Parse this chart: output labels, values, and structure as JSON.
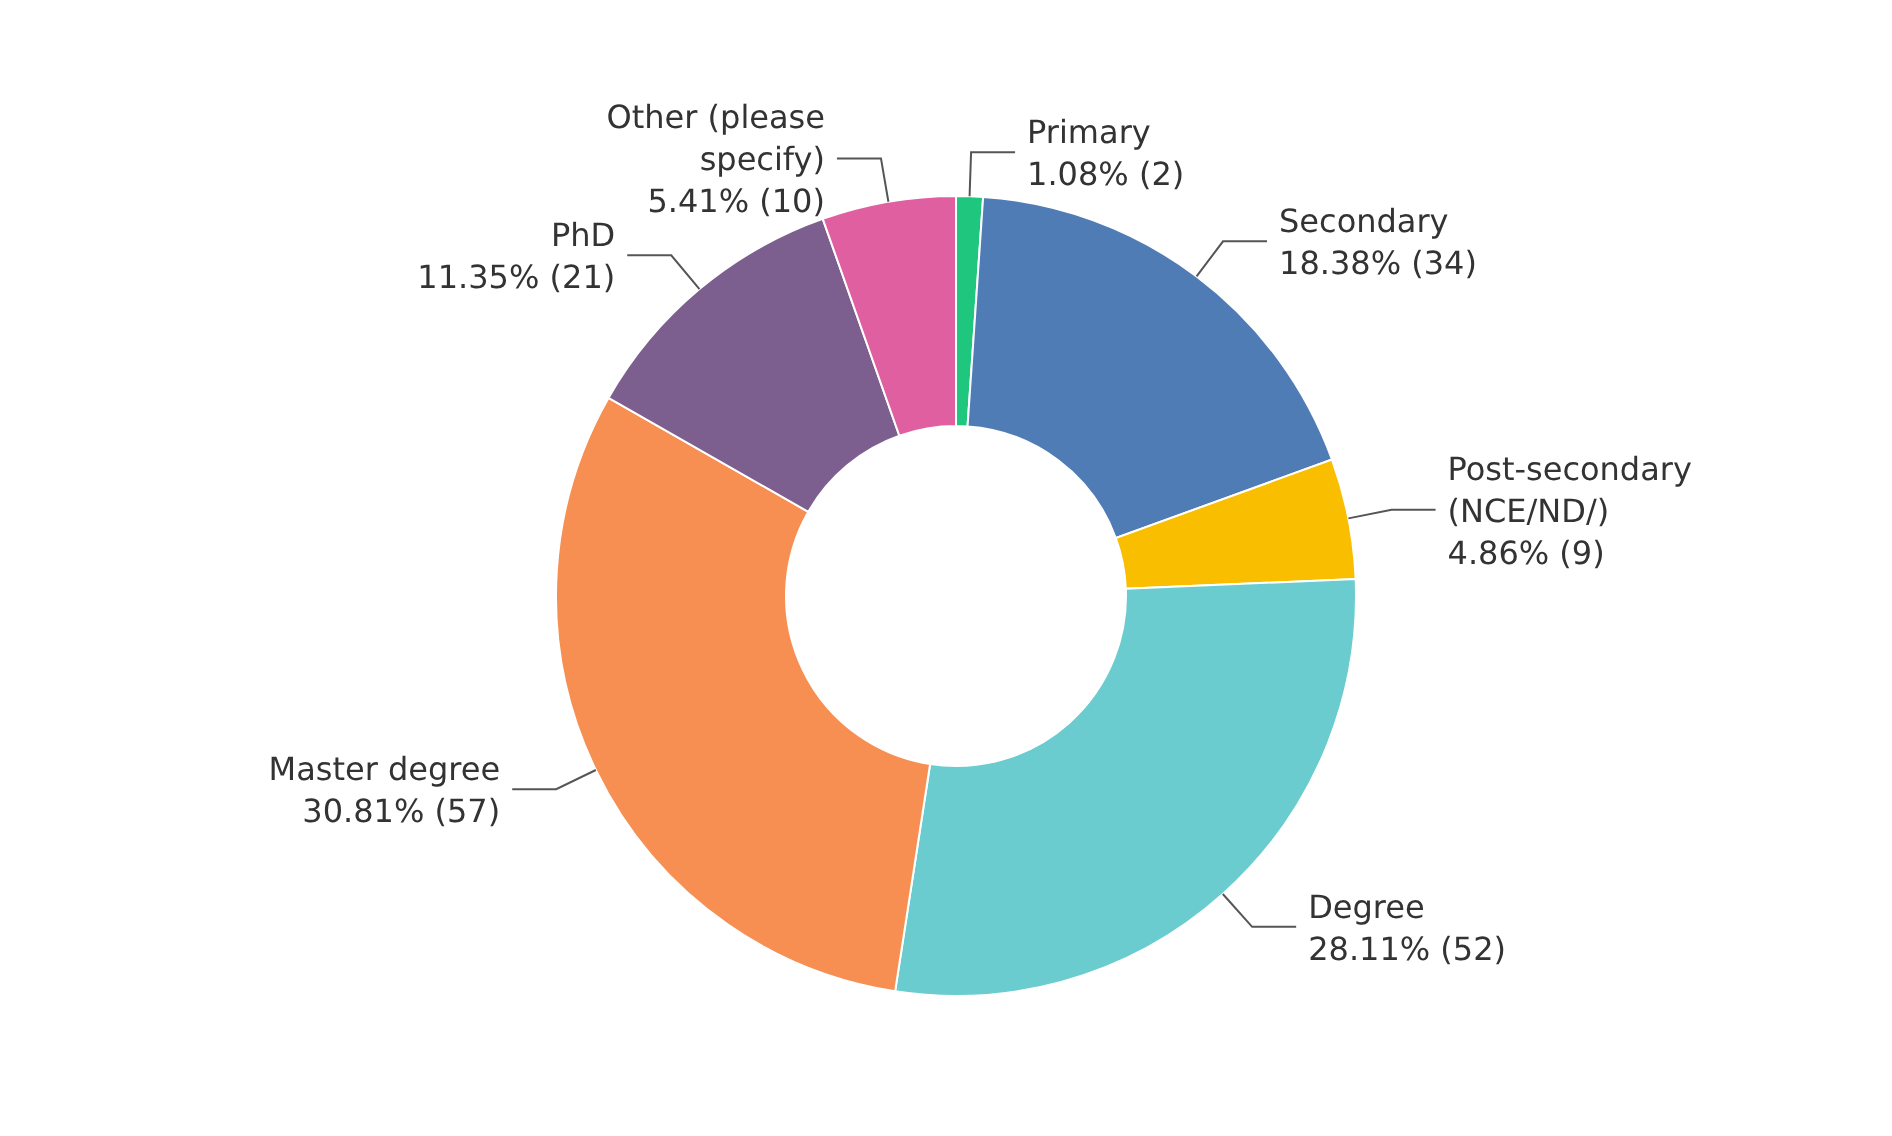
{
  "chart_data": {
    "type": "donut",
    "categories": [
      "Primary",
      "Secondary",
      "Post-secondary (NCE/ND/)",
      "Degree",
      "Master degree",
      "PhD",
      "Other (please specify)"
    ],
    "values": [
      2,
      34,
      9,
      52,
      57,
      21,
      10
    ],
    "value_labels": [
      "1.08% (2)",
      "18.38% (34)",
      "4.86% (9)",
      "28.11% (52)",
      "30.81% (57)",
      "11.35% (21)",
      "5.41% (10)"
    ],
    "colors": [
      "#1fc77e",
      "#507cb6",
      "#f9be00",
      "#6bccd0",
      "#f78f52",
      "#7c5f8f",
      "#e05fa0"
    ],
    "legend": false
  }
}
